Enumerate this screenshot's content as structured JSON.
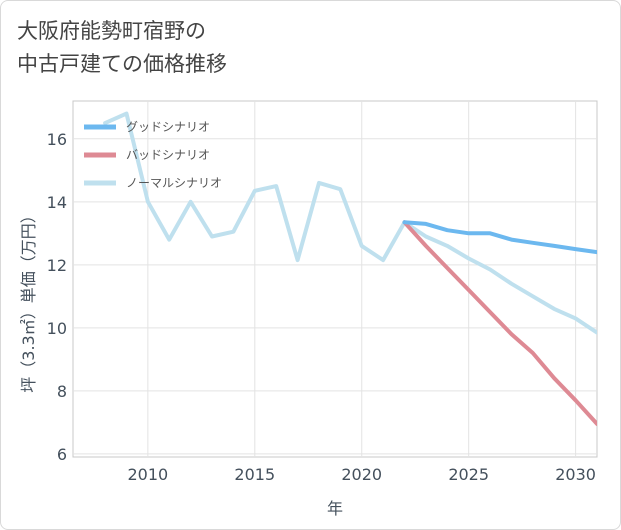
{
  "chart_data": {
    "type": "line",
    "title_lines": [
      "大阪府能勢町宿野の",
      "中古戸建ての価格推移"
    ],
    "xlabel": "年",
    "ylabel": "坪（3.3㎡）単価（万円）",
    "xlim": [
      2006.5,
      2031
    ],
    "ylim": [
      5.9,
      17.2
    ],
    "x_ticks": [
      2010,
      2015,
      2020,
      2025,
      2030
    ],
    "y_ticks": [
      6,
      8,
      10,
      12,
      14,
      16
    ],
    "legend_position": "top-left",
    "series": [
      {
        "name": "グッドシナリオ",
        "color": "#6cb8ef",
        "x": [
          2022,
          2023,
          2024,
          2025,
          2026,
          2027,
          2028,
          2029,
          2030,
          2031
        ],
        "values": [
          13.35,
          13.3,
          13.1,
          13.0,
          13.0,
          12.8,
          12.7,
          12.6,
          12.5,
          12.4
        ]
      },
      {
        "name": "バッドシナリオ",
        "color": "#de8a94",
        "x": [
          2022,
          2023,
          2024,
          2025,
          2026,
          2027,
          2028,
          2029,
          2030,
          2031
        ],
        "values": [
          13.35,
          12.6,
          11.9,
          11.2,
          10.5,
          9.8,
          9.2,
          8.4,
          7.7,
          6.95
        ]
      },
      {
        "name": "ノーマルシナリオ",
        "color": "#bfe0ee",
        "x": [
          2008,
          2009,
          2010,
          2011,
          2012,
          2013,
          2014,
          2015,
          2016,
          2017,
          2018,
          2019,
          2020,
          2021,
          2022,
          2023,
          2024,
          2025,
          2026,
          2027,
          2028,
          2029,
          2030,
          2031
        ],
        "values": [
          16.5,
          16.8,
          14.0,
          12.8,
          14.0,
          12.9,
          13.05,
          14.35,
          14.5,
          12.15,
          14.6,
          14.4,
          12.6,
          12.15,
          13.35,
          12.9,
          12.6,
          12.2,
          11.85,
          11.4,
          11.0,
          10.6,
          10.3,
          9.85
        ]
      }
    ]
  }
}
